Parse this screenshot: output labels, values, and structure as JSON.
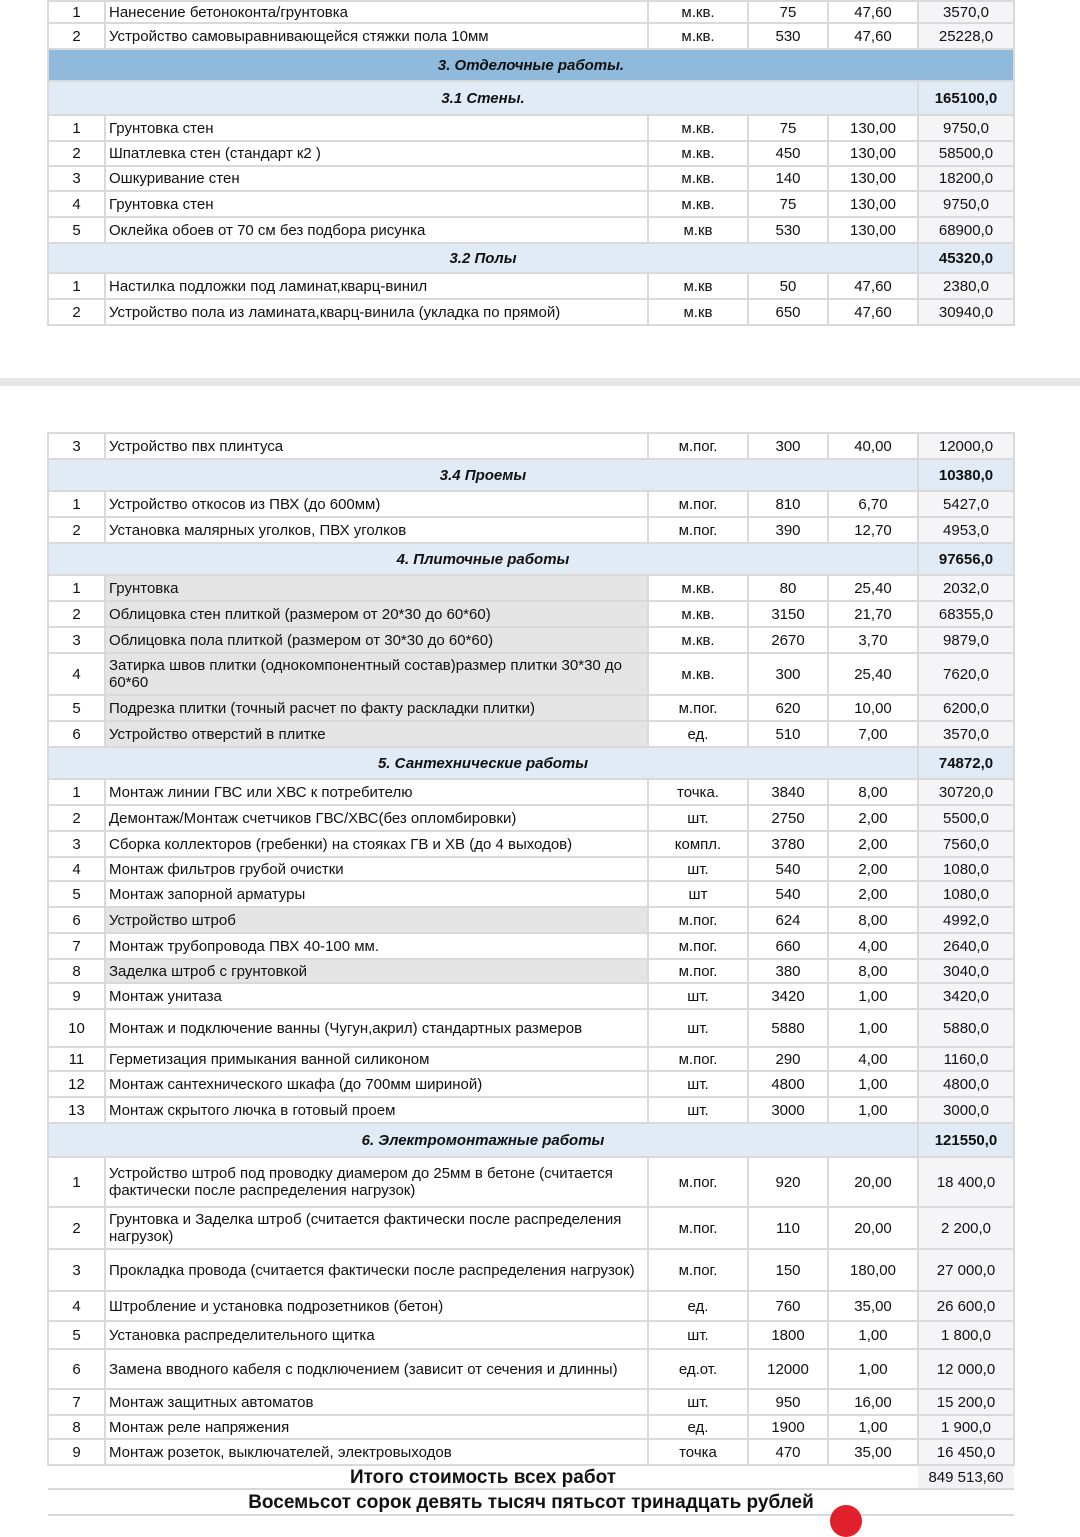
{
  "page1": [
    {
      "type": "item",
      "n": "1",
      "name": "Нанесение бетоноконта/грунтовка",
      "unit": "м.кв.",
      "qty": "75",
      "price": "47,60",
      "total": "3570,0"
    },
    {
      "type": "item",
      "n": "2",
      "name": "Устройство самовыравнивающейся стяжки пола 10мм",
      "unit": "м.кв.",
      "qty": "530",
      "price": "47,60",
      "total": "25228,0"
    },
    {
      "type": "section1",
      "title": "3. Отделочные работы."
    },
    {
      "type": "section2",
      "title": "3.1 Стены.",
      "total": "165100,0"
    },
    {
      "type": "item",
      "n": "1",
      "name": "Грунтовка стен",
      "unit": "м.кв.",
      "qty": "75",
      "price": "130,00",
      "total": "9750,0"
    },
    {
      "type": "item",
      "n": "2",
      "name": "Шпатлевка стен  (стандарт к2 )",
      "unit": "м.кв.",
      "qty": "450",
      "price": "130,00",
      "total": "58500,0"
    },
    {
      "type": "item",
      "n": "3",
      "name": "Ошкуривание стен",
      "unit": "м.кв.",
      "qty": "140",
      "price": "130,00",
      "total": "18200,0"
    },
    {
      "type": "item",
      "n": "4",
      "name": "Грунтовка стен",
      "unit": "м.кв.",
      "qty": "75",
      "price": "130,00",
      "total": "9750,0"
    },
    {
      "type": "item",
      "n": "5",
      "name": "Оклейка обоев от 70 см без подбора рисунка",
      "unit": "м.кв",
      "qty": "530",
      "price": "130,00",
      "total": "68900,0"
    },
    {
      "type": "section2",
      "title": "3.2 Полы",
      "total": "45320,0"
    },
    {
      "type": "item",
      "n": "1",
      "name": "Настилка подложки под ламинат,кварц-винил",
      "unit": "м.кв",
      "qty": "50",
      "price": "47,60",
      "total": "2380,0"
    },
    {
      "type": "item",
      "n": "2",
      "name": "Устройство пола из ламината,кварц-винила (укладка по прямой)",
      "unit": "м.кв",
      "qty": "650",
      "price": "47,60",
      "total": "30940,0"
    }
  ],
  "page2": [
    {
      "type": "item",
      "n": "3",
      "name": "Устройство пвх плинтуса",
      "unit": "м.пог.",
      "qty": "300",
      "price": "40,00",
      "total": "12000,0"
    },
    {
      "type": "section2",
      "title": "3.4 Проемы",
      "total": "10380,0"
    },
    {
      "type": "item",
      "n": "1",
      "name": "Устройство откосов из ПВХ (до 600мм)",
      "unit": "м.пог.",
      "qty": "810",
      "price": "6,70",
      "total": "5427,0"
    },
    {
      "type": "item",
      "n": "2",
      "name": "Установка малярных уголков, ПВХ уголков",
      "unit": "м.пог.",
      "qty": "390",
      "price": "12,70",
      "total": "4953,0"
    },
    {
      "type": "section2",
      "title": "4. Плиточные работы",
      "total": "97656,0"
    },
    {
      "type": "item",
      "n": "1",
      "name": "Грунтовка",
      "unit": "м.кв.",
      "qty": "80",
      "price": "25,40",
      "total": "2032,0",
      "highlighted": true
    },
    {
      "type": "item",
      "n": "2",
      "name": "Облицовка стен плиткой (размером от 20*30 до 60*60)",
      "unit": "м.кв.",
      "qty": "3150",
      "price": "21,70",
      "total": "68355,0",
      "highlighted": true
    },
    {
      "type": "item",
      "n": "3",
      "name": "Облицовка пола плиткой (размером от 30*30 до 60*60)",
      "unit": "м.кв.",
      "qty": "2670",
      "price": "3,70",
      "total": "9879,0",
      "highlighted": true
    },
    {
      "type": "item",
      "n": "4",
      "name": "Затирка швов плитки (однокомпонентный состав)размер плитки 30*30 до 60*60",
      "unit": "м.кв.",
      "qty": "300",
      "price": "25,40",
      "total": "7620,0",
      "highlighted": true
    },
    {
      "type": "item",
      "n": "5",
      "name": "Подрезка плитки (точный расчет по факту раскладки плитки)",
      "unit": "м.пог.",
      "qty": "620",
      "price": "10,00",
      "total": "6200,0",
      "highlighted": true
    },
    {
      "type": "item",
      "n": "6",
      "name": "Устройство отверстий в плитке",
      "unit": "ед.",
      "qty": "510",
      "price": "7,00",
      "total": "3570,0",
      "highlighted": true
    },
    {
      "type": "section2",
      "title": "5. Сантехнические работы",
      "total": "74872,0"
    },
    {
      "type": "item",
      "n": "1",
      "name": "Монтаж линии ГВС или ХВС к потребителю",
      "unit": "точка.",
      "qty": "3840",
      "price": "8,00",
      "total": "30720,0"
    },
    {
      "type": "item",
      "n": "2",
      "name": "Демонтаж/Монтаж счетчиков ГВС/ХВС(без опломбировки)",
      "unit": "шт.",
      "qty": "2750",
      "price": "2,00",
      "total": "5500,0"
    },
    {
      "type": "item",
      "n": "3",
      "name": "Сборка коллекторов (гребенки) на стояках ГВ и ХВ (до 4 выходов)",
      "unit": "компл.",
      "qty": "3780",
      "price": "2,00",
      "total": "7560,0"
    },
    {
      "type": "item",
      "n": "4",
      "name": "Монтаж фильтров грубой очистки",
      "unit": "шт.",
      "qty": "540",
      "price": "2,00",
      "total": "1080,0"
    },
    {
      "type": "item",
      "n": "5",
      "name": "Монтаж запорной арматуры",
      "unit": "шт",
      "qty": "540",
      "price": "2,00",
      "total": "1080,0"
    },
    {
      "type": "item",
      "n": "6",
      "name": "Устройство штроб",
      "unit": "м.пог.",
      "qty": "624",
      "price": "8,00",
      "total": "4992,0",
      "highlighted": true
    },
    {
      "type": "item",
      "n": "7",
      "name": "Монтаж трубопровода ПВХ 40-100 мм.",
      "unit": "м.пог.",
      "qty": "660",
      "price": "4,00",
      "total": "2640,0"
    },
    {
      "type": "item",
      "n": "8",
      "name": "Заделка  штроб с грунтовкой",
      "unit": "м.пог.",
      "qty": "380",
      "price": "8,00",
      "total": "3040,0",
      "highlighted": true
    },
    {
      "type": "item",
      "n": "9",
      "name": "Монтаж унитаза",
      "unit": "шт.",
      "qty": "3420",
      "price": "1,00",
      "total": "3420,0"
    },
    {
      "type": "item",
      "n": "10",
      "name": "Монтаж и подключение ванны (Чугун,акрил) стандартных размеров",
      "unit": "шт.",
      "qty": "5880",
      "price": "1,00",
      "total": "5880,0"
    },
    {
      "type": "item",
      "n": "11",
      "name": " Герметизация примыкания ванной силиконом",
      "unit": "м.пог.",
      "qty": "290",
      "price": "4,00",
      "total": "1160,0"
    },
    {
      "type": "item",
      "n": "12",
      "name": "Монтаж сантехнического шкафа (до 700мм шириной)",
      "unit": "шт.",
      "qty": "4800",
      "price": "1,00",
      "total": "4800,0"
    },
    {
      "type": "item",
      "n": "13",
      "name": "Монтаж скрытого лючка в готовый проем",
      "unit": "шт.",
      "qty": "3000",
      "price": "1,00",
      "total": "3000,0"
    },
    {
      "type": "section2",
      "title": "6. Электромонтажные работы",
      "total": "121550,0"
    },
    {
      "type": "item",
      "n": "1",
      "name": "Устройство штроб под проводку диамером до 25мм в бетоне (считается фактически после распределения нагрузок)",
      "unit": "м.пог.",
      "qty": "920",
      "price": "20,00",
      "total": "18 400,0"
    },
    {
      "type": "item",
      "n": "2",
      "name": "Грунтовка и Заделка штроб (считается фактически после распределения нагрузок)",
      "unit": "м.пог.",
      "qty": "110",
      "price": "20,00",
      "total": "2 200,0"
    },
    {
      "type": "item",
      "n": "3",
      "name": "Прокладка провода (считается фактически после распределения нагрузок)",
      "unit": "м.пог.",
      "qty": "150",
      "price": "180,00",
      "total": "27 000,0"
    },
    {
      "type": "item",
      "n": "4",
      "name": "Штробление  и установка подрозетников (бетон)",
      "unit": "ед.",
      "qty": "760",
      "price": "35,00",
      "total": "26 600,0"
    },
    {
      "type": "item",
      "n": "5",
      "name": "Установка распределительного щитка",
      "unit": "шт.",
      "qty": "1800",
      "price": "1,00",
      "total": "1 800,0"
    },
    {
      "type": "item",
      "n": "6",
      "name": "Замена вводного кабеля с подключением (зависит от сечения и длинны)",
      "unit": "ед.от.",
      "qty": "12000",
      "price": "1,00",
      "total": "12 000,0"
    },
    {
      "type": "item",
      "n": "7",
      "name": "Монтаж защитных автоматов",
      "unit": "шт.",
      "qty": "950",
      "price": "16,00",
      "total": "15 200,0"
    },
    {
      "type": "item",
      "n": "8",
      "name": "Монтаж реле напряжения",
      "unit": "ед.",
      "qty": "1900",
      "price": "1,00",
      "total": "1 900,0"
    },
    {
      "type": "item",
      "n": "9",
      "name": "Монтаж розеток, выключателей, электровыходов",
      "unit": "точка",
      "qty": "470",
      "price": "35,00",
      "total": "16 450,0"
    }
  ],
  "footer": {
    "total_label": "Итого стоимость всех работ",
    "total_value": "849 513,60",
    "total_words": "Восемьсот сорок девять тысяч пятьсот тринадцать рублей"
  },
  "colors": {
    "section_primary": "#8fbadc",
    "section_secondary": "#e0ebf5",
    "highlight": "#e4e4e4",
    "grid": "#d9d9d9"
  }
}
